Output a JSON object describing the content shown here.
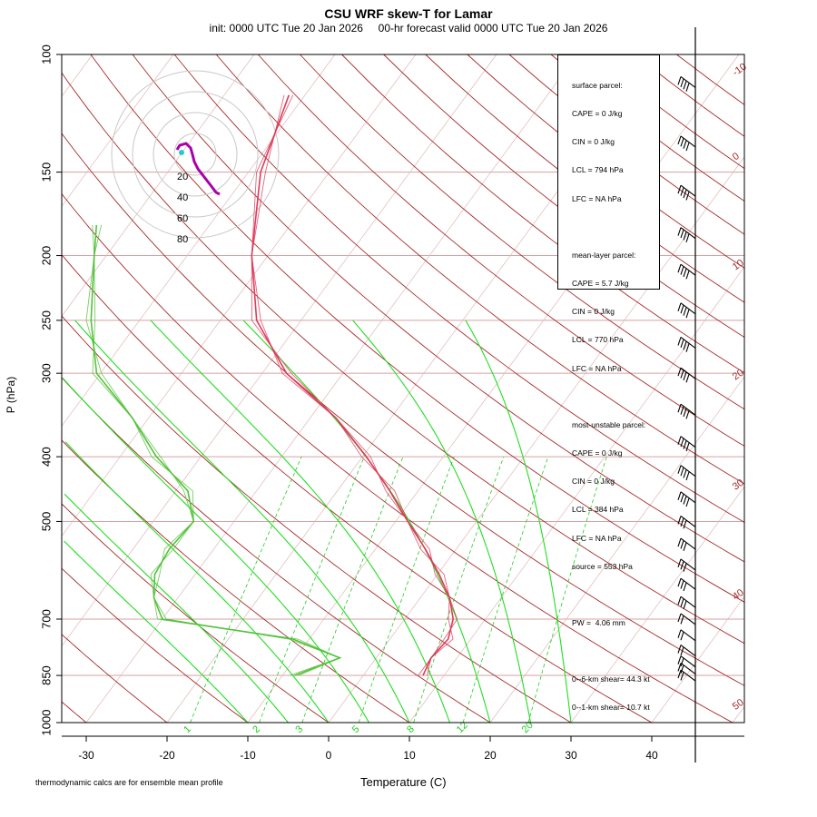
{
  "title": "CSU WRF skew-T for Lamar",
  "subtitle": "init: 0000 UTC Tue 20 Jan 2026     00-hr forecast valid 0000 UTC Tue 20 Jan 2026",
  "footnote": "thermodynamic calcs are for ensemble mean profile",
  "chart_data": {
    "type": "line",
    "xlabel": "Temperature (C)",
    "ylabel": "P (hPa)",
    "x_ticks": [
      "-30",
      "-20",
      "-10",
      "0",
      "10",
      "20",
      "30",
      "40"
    ],
    "y_ticks": [
      "100",
      "150",
      "200",
      "250",
      "300",
      "400",
      "500",
      "700",
      "850",
      "1000"
    ],
    "isotherm_labels": [
      "-10",
      "0",
      "10",
      "20",
      "30",
      "40",
      "50"
    ],
    "mixing_ratio_labels": [
      "1",
      "2",
      "3",
      "5",
      "8",
      "12",
      "20"
    ],
    "hodograph_ring_labels": [
      "20",
      "40",
      "60",
      "80"
    ],
    "colors": {
      "temperature": "#dc3c5a",
      "dewpoint": "#55c23c",
      "moist_adiabat": "#22dd22",
      "dry_adiabat": "#a52a2a",
      "isobar": "#d9a0a0",
      "mixing_ratio": "#22cc22",
      "hodograph": "#aa00aa"
    },
    "series": [
      {
        "values": [
          [
            850,
            7.4
          ],
          [
            800,
            6.8
          ],
          [
            750,
            7.2
          ],
          [
            700,
            6.0
          ],
          [
            650,
            3.6
          ],
          [
            600,
            0.2
          ],
          [
            550,
            -3.8
          ],
          [
            500,
            -8.5
          ],
          [
            450,
            -13.5
          ],
          [
            400,
            -19.5
          ],
          [
            350,
            -26.8
          ],
          [
            300,
            -37.0
          ],
          [
            250,
            -45.5
          ],
          [
            200,
            -52.0
          ],
          [
            150,
            -58.5
          ],
          [
            115,
            -62.0
          ]
        ]
      },
      {
        "values": [
          [
            850,
            -8.5
          ],
          [
            800,
            -4.5
          ],
          [
            750,
            -12.0
          ],
          [
            700,
            -30.0
          ],
          [
            650,
            -33.0
          ],
          [
            600,
            -35.0
          ],
          [
            550,
            -35.5
          ],
          [
            500,
            -35.0
          ],
          [
            450,
            -38.5
          ],
          [
            400,
            -45.5
          ],
          [
            350,
            -52.0
          ],
          [
            300,
            -60.5
          ],
          [
            250,
            -66.0
          ],
          [
            200,
            -71.5
          ],
          [
            180,
            -74.0
          ]
        ]
      }
    ],
    "surface_parcel": {
      "header": "surface parcel:",
      "cape": "CAPE = 0 J/kg",
      "cin": "CIN = 0 J/kg",
      "lcl": "LCL = 794 hPa",
      "lfc": "LFC = NA hPa"
    },
    "mean_layer_parcel": {
      "header": "mean-layer parcel:",
      "cape": "CAPE = 5.7 J/kg",
      "cin": "CIN = 0 J/kg",
      "lcl": "LCL = 770 hPa",
      "lfc": "LFC = NA hPa"
    },
    "most_unstable_parcel": {
      "header": "most-unstable parcel:",
      "cape": "CAPE = 0 J/kg",
      "cin": "CIN = 0 J/kg",
      "lcl": "LCL = 384 hPa",
      "lfc": "LFC = NA hPa",
      "source": "source = 553 hPa"
    },
    "pw": "PW =  4.06 mm",
    "shear_0_6": "0--6-km shear= 44.3 kt",
    "shear_0_1": "0--1-km shear= 10.7 kt"
  }
}
